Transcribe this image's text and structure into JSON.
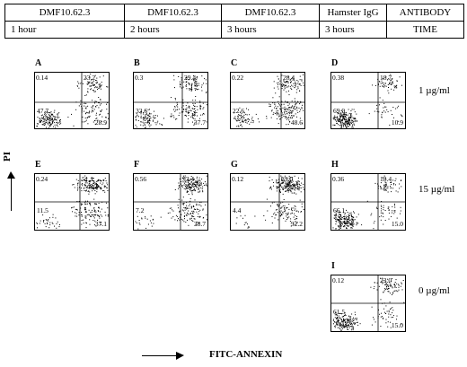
{
  "header": {
    "antibody_row": [
      "DMF10.62.3",
      "DMF10.62.3",
      "DMF10.62.3",
      "Hamster IgG",
      "ANTIBODY"
    ],
    "time_row": [
      "1 hour",
      "2 hours",
      "3 hours",
      "3 hours",
      "TIME"
    ]
  },
  "y_axis_label": "PI",
  "x_axis_label": "FITC-ANNEXIN",
  "concentrations": [
    "1 µg/ml",
    "15 µg/ml",
    "0 µg/ml"
  ],
  "panels": [
    {
      "id": "A",
      "ul": "0.14",
      "ur": "23.2",
      "ll": "47.7",
      "lr": "28.9"
    },
    {
      "id": "B",
      "ul": "0.3",
      "ur": "29.4",
      "ll": "32.6",
      "lr": "37.7"
    },
    {
      "id": "C",
      "ul": "0.22",
      "ur": "28.4",
      "ll": "22.6",
      "lr": "48.6"
    },
    {
      "id": "D",
      "ul": "0.38",
      "ur": "18.7",
      "ll": "69.9",
      "lr": "10.9"
    },
    {
      "id": "E",
      "ul": "0.24",
      "ur": "51.1",
      "ll": "11.5",
      "lr": "37.1"
    },
    {
      "id": "F",
      "ul": "0.56",
      "ur": "53.4",
      "ll": "7.2",
      "lr": "38.7"
    },
    {
      "id": "G",
      "ul": "0.12",
      "ur": "63.0",
      "ll": "4.4",
      "lr": "32.2"
    },
    {
      "id": "H",
      "ul": "0.36",
      "ur": "18.4",
      "ll": "66.1",
      "lr": "15.0"
    },
    {
      "id": "I",
      "ul": "0.12",
      "ur": "23.0",
      "ll": "61.5",
      "lr": "15.0"
    }
  ]
}
